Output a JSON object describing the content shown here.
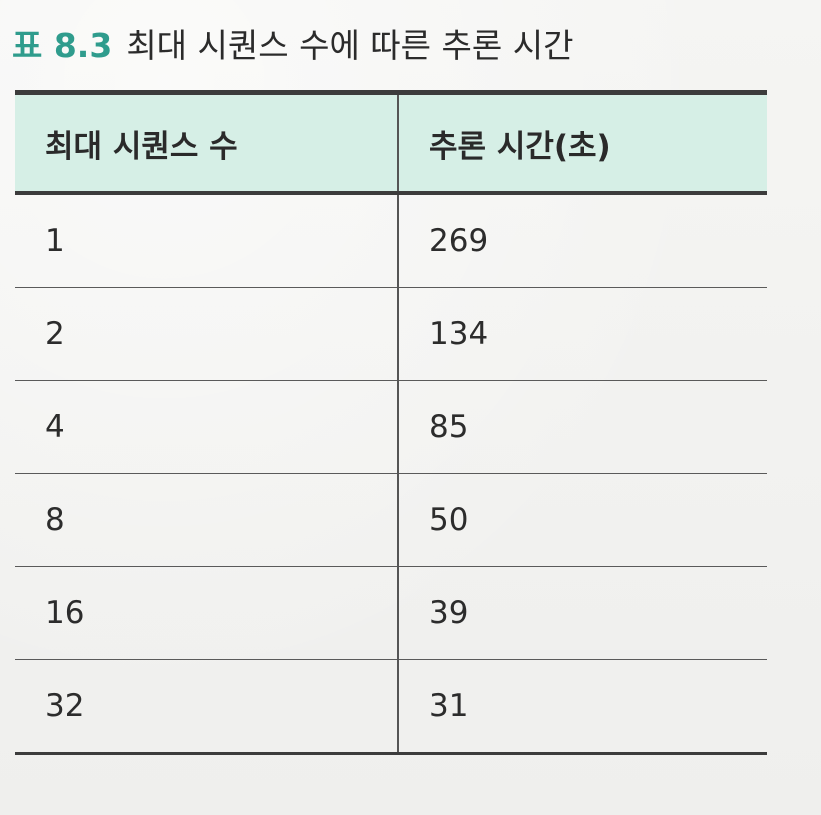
{
  "caption": {
    "label": "표 8.3",
    "title": "최대 시퀀스 수에 따른 추론 시간"
  },
  "table": {
    "headers": [
      "최대 시퀀스 수",
      "추론 시간(초)"
    ],
    "rows": [
      [
        "1",
        "269"
      ],
      [
        "2",
        "134"
      ],
      [
        "4",
        "85"
      ],
      [
        "8",
        "50"
      ],
      [
        "16",
        "39"
      ],
      [
        "32",
        "31"
      ]
    ]
  },
  "colors": {
    "label": "#2f9c8d",
    "header_bg": "#d6efe6",
    "rule": "#3c3c3c"
  }
}
